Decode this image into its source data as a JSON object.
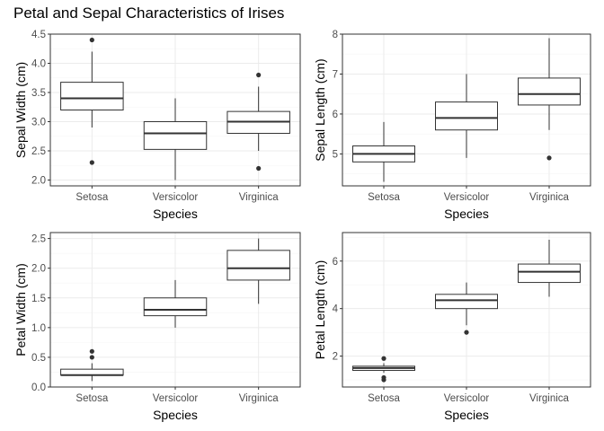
{
  "figure": {
    "title": "Petal and Sepal Characteristics of Irises"
  },
  "colors": {
    "panel_border": "#333333",
    "grid_major": "#ebebeb",
    "grid_minor": "#f5f5f5",
    "box_fill": "#ffffff",
    "box_line": "#333333",
    "tick_label": "#4d4d4d"
  },
  "chart_data": [
    {
      "type": "boxplot",
      "xlabel": "Species",
      "ylabel": "Sepal Width (cm)",
      "categories": [
        "Setosa",
        "Versicolor",
        "Virginica"
      ],
      "ylim": [
        1.9,
        4.5
      ],
      "yticks": [
        "2.0",
        "2.5",
        "3.0",
        "3.5",
        "4.0",
        "4.5"
      ],
      "grid": true,
      "boxes": [
        {
          "min": 2.9,
          "q1": 3.2,
          "median": 3.4,
          "q3": 3.675,
          "max": 4.2,
          "outliers": [
            4.4,
            2.3
          ]
        },
        {
          "min": 2.0,
          "q1": 2.525,
          "median": 2.8,
          "q3": 3.0,
          "max": 3.4,
          "outliers": []
        },
        {
          "min": 2.5,
          "q1": 2.8,
          "median": 3.0,
          "q3": 3.175,
          "max": 3.6,
          "outliers": [
            3.8,
            2.2
          ]
        }
      ]
    },
    {
      "type": "boxplot",
      "xlabel": "Species",
      "ylabel": "Sepal Length (cm)",
      "categories": [
        "Setosa",
        "Versicolor",
        "Virginica"
      ],
      "ylim": [
        4.2,
        8.0
      ],
      "yticks": [
        "5",
        "6",
        "7",
        "8"
      ],
      "grid": true,
      "boxes": [
        {
          "min": 4.3,
          "q1": 4.8,
          "median": 5.0,
          "q3": 5.2,
          "max": 5.8,
          "outliers": []
        },
        {
          "min": 4.9,
          "q1": 5.6,
          "median": 5.9,
          "q3": 6.3,
          "max": 7.0,
          "outliers": []
        },
        {
          "min": 5.6,
          "q1": 6.225,
          "median": 6.5,
          "q3": 6.9,
          "max": 7.9,
          "outliers": [
            4.9
          ]
        }
      ]
    },
    {
      "type": "boxplot",
      "xlabel": "Species",
      "ylabel": "Petal Width (cm)",
      "categories": [
        "Setosa",
        "Versicolor",
        "Virginica"
      ],
      "ylim": [
        0.0,
        2.6
      ],
      "yticks": [
        "0.0",
        "0.5",
        "1.0",
        "1.5",
        "2.0",
        "2.5"
      ],
      "grid": true,
      "boxes": [
        {
          "min": 0.1,
          "q1": 0.2,
          "median": 0.2,
          "q3": 0.3,
          "max": 0.4,
          "outliers": [
            0.5,
            0.6
          ]
        },
        {
          "min": 1.0,
          "q1": 1.2,
          "median": 1.3,
          "q3": 1.5,
          "max": 1.8,
          "outliers": []
        },
        {
          "min": 1.4,
          "q1": 1.8,
          "median": 2.0,
          "q3": 2.3,
          "max": 2.5,
          "outliers": []
        }
      ]
    },
    {
      "type": "boxplot",
      "xlabel": "Species",
      "ylabel": "Petal Length (cm)",
      "categories": [
        "Setosa",
        "Versicolor",
        "Virginica"
      ],
      "ylim": [
        0.7,
        7.2
      ],
      "yticks": [
        "2",
        "4",
        "6"
      ],
      "grid": true,
      "boxes": [
        {
          "min": 1.3,
          "q1": 1.4,
          "median": 1.5,
          "q3": 1.575,
          "max": 1.7,
          "outliers": [
            1.9,
            1.1,
            1.0
          ]
        },
        {
          "min": 3.3,
          "q1": 4.0,
          "median": 4.35,
          "q3": 4.6,
          "max": 5.1,
          "outliers": [
            3.0
          ]
        },
        {
          "min": 4.5,
          "q1": 5.1,
          "median": 5.55,
          "q3": 5.875,
          "max": 6.9,
          "outliers": []
        }
      ]
    }
  ]
}
